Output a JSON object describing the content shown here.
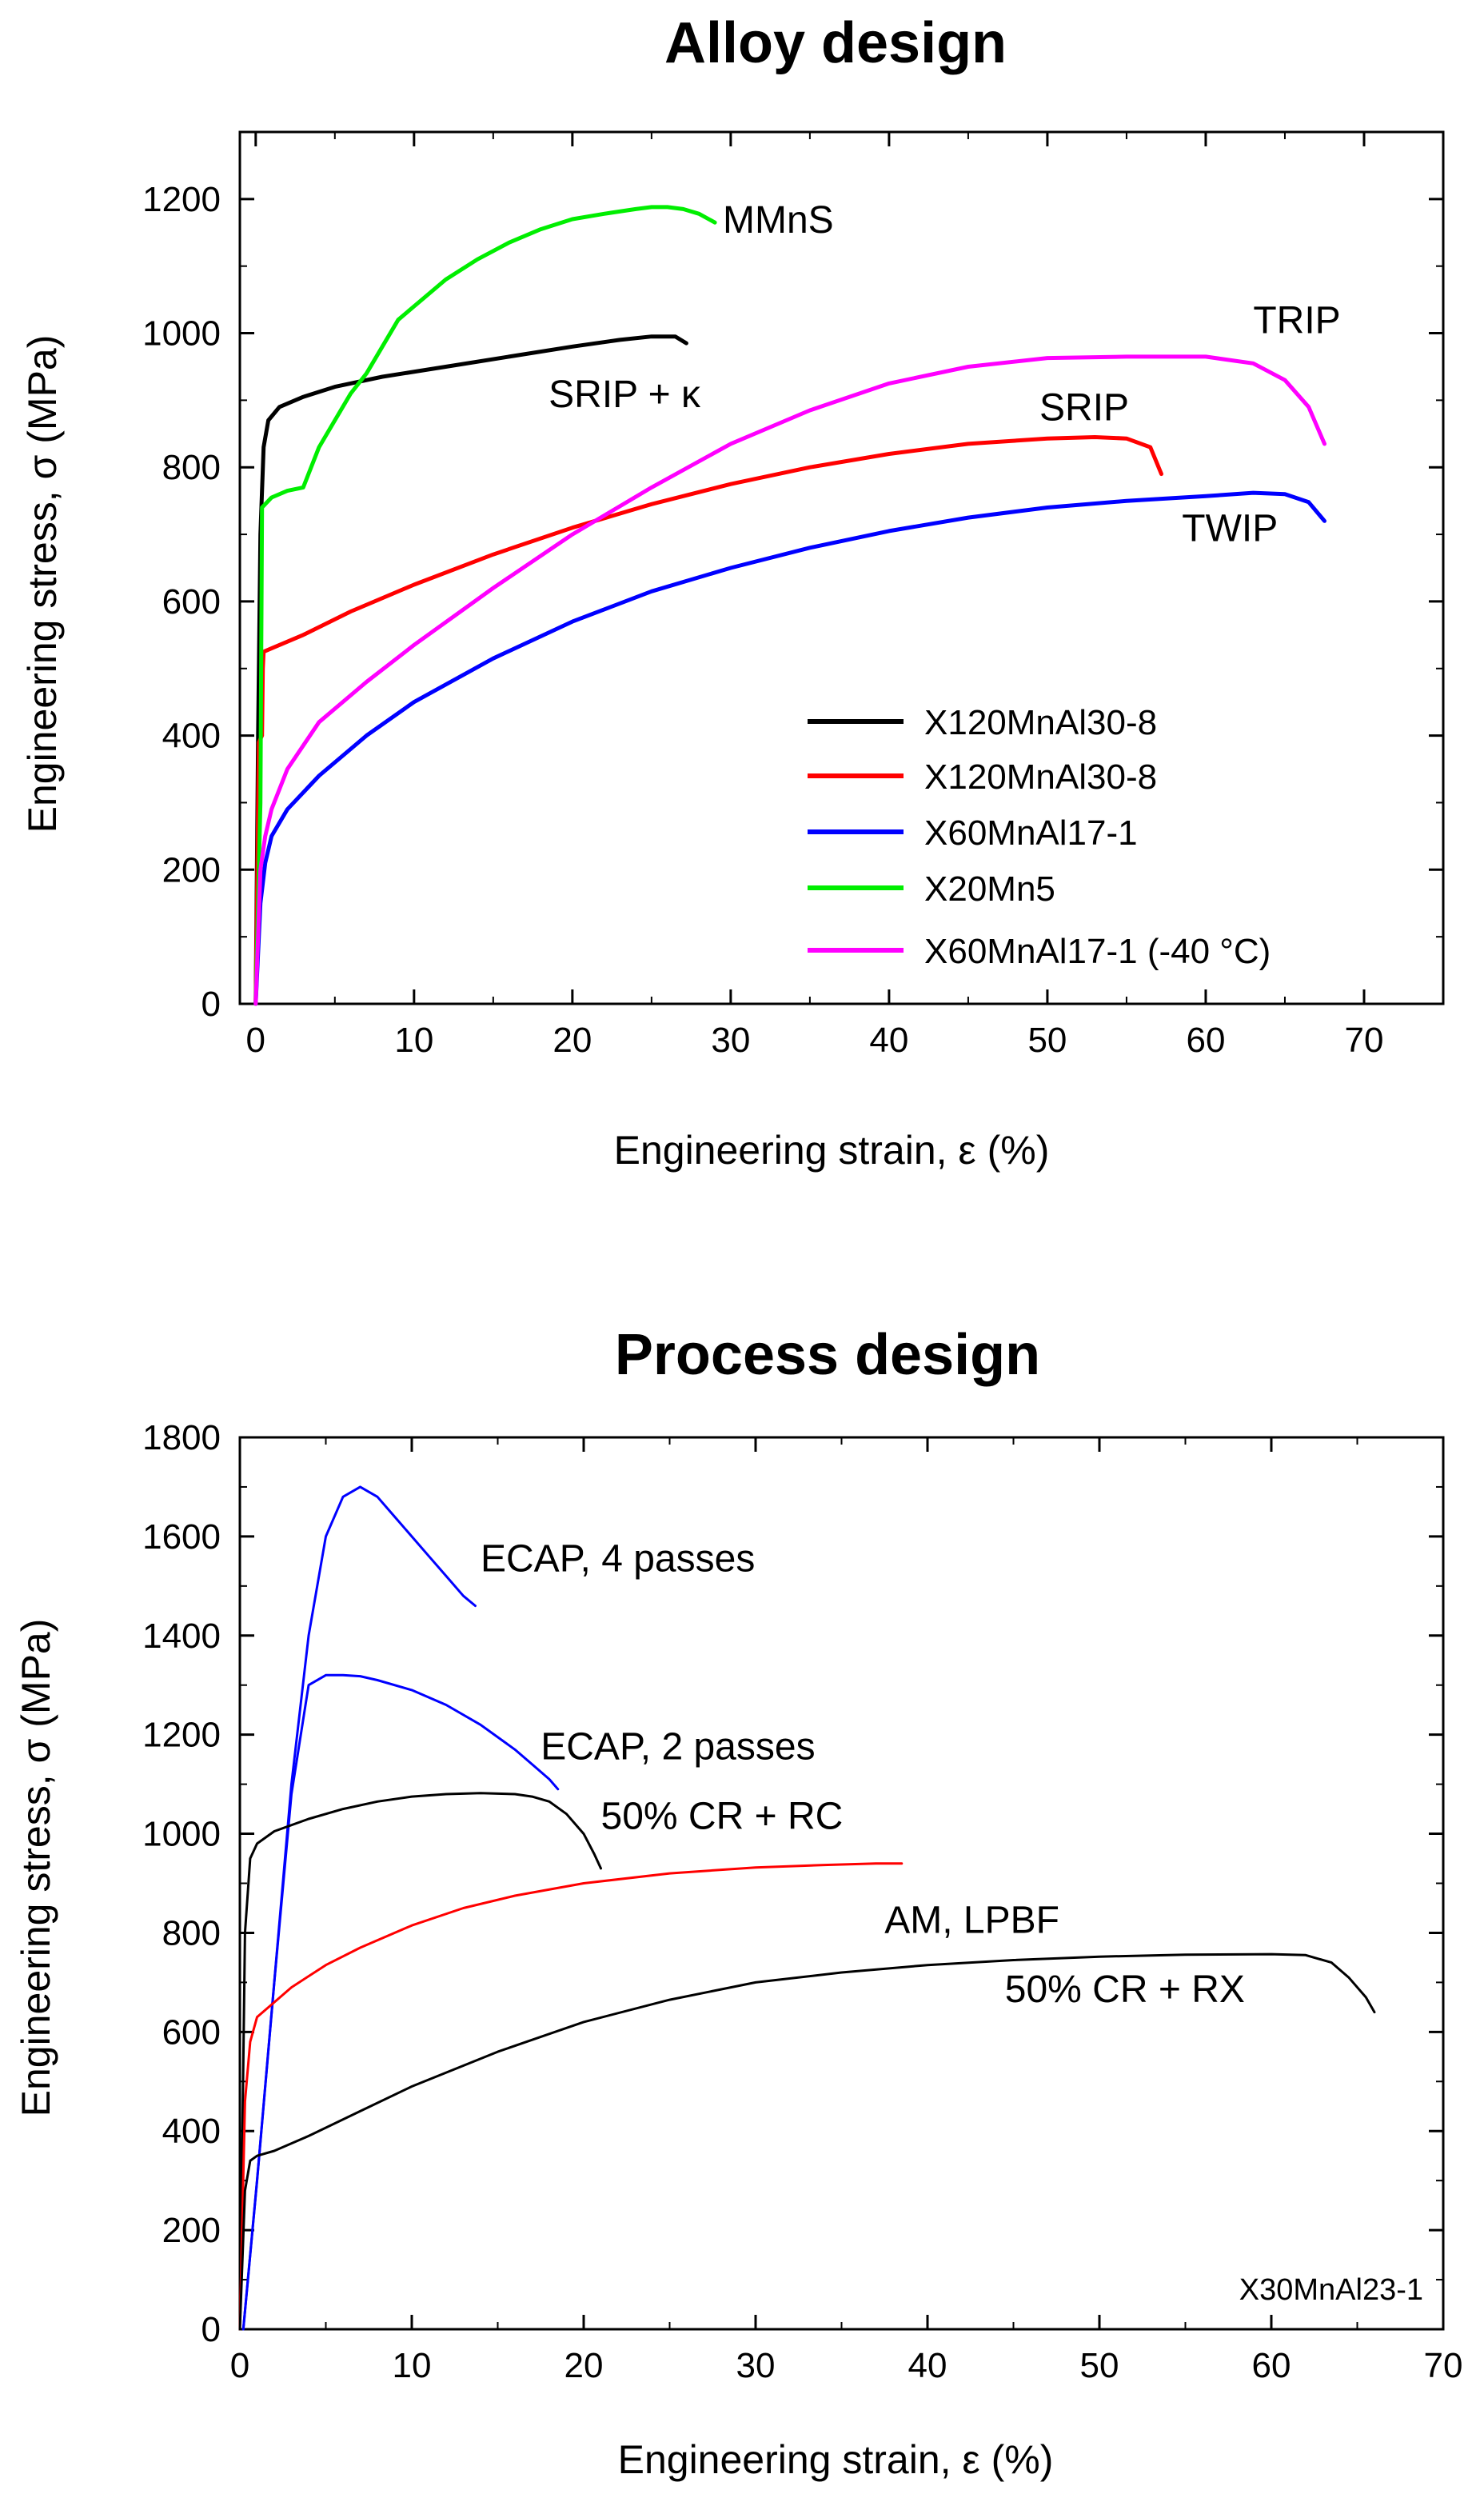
{
  "chart_data": [
    {
      "type": "line",
      "title": "Alloy design",
      "xlabel": "Engineering strain, ε (%)",
      "ylabel": "Engineering stress, σ (MPa)",
      "xlim": [
        -1,
        75
      ],
      "ylim": [
        0,
        1300
      ],
      "xticks": [
        0,
        10,
        20,
        30,
        40,
        50,
        60,
        70
      ],
      "yticks": [
        0,
        200,
        400,
        600,
        800,
        1000,
        1200
      ],
      "grid": false,
      "legend_position": "lower-right",
      "series": [
        {
          "name": "X120MnAl30-8",
          "color": "#000000",
          "x": [
            0,
            0.15,
            0.3,
            0.5,
            0.8,
            1.5,
            3,
            5,
            8,
            12,
            16,
            20,
            23,
            25,
            26.5,
            27.2
          ],
          "y": [
            0,
            400,
            700,
            830,
            870,
            890,
            905,
            920,
            935,
            950,
            965,
            980,
            990,
            995,
            995,
            985
          ]
        },
        {
          "name": "X120MnAl30-8",
          "color": "#ff0000",
          "x": [
            0,
            0.2,
            0.4,
            0.45,
            0.5,
            1,
            3,
            6,
            10,
            15,
            20,
            25,
            30,
            35,
            40,
            45,
            50,
            53,
            55,
            56.5,
            57.2
          ],
          "y": [
            0,
            390,
            400,
            500,
            525,
            530,
            550,
            585,
            625,
            670,
            710,
            745,
            775,
            800,
            820,
            835,
            843,
            845,
            843,
            830,
            790
          ]
        },
        {
          "name": "X60MnAl17-1",
          "color": "#0000ff",
          "x": [
            0,
            0.3,
            0.6,
            1,
            2,
            4,
            7,
            10,
            15,
            20,
            25,
            30,
            35,
            40,
            45,
            50,
            55,
            60,
            63,
            65,
            66.5,
            67.5
          ],
          "y": [
            0,
            150,
            210,
            250,
            290,
            340,
            400,
            450,
            515,
            570,
            615,
            650,
            680,
            705,
            725,
            740,
            750,
            757,
            762,
            760,
            748,
            720
          ]
        },
        {
          "name": "X20Mn5",
          "color": "#00ee00",
          "x": [
            0,
            0.3,
            0.4,
            0.6,
            1,
            2,
            3,
            4,
            5,
            6,
            7,
            8,
            9,
            10,
            12,
            14,
            16,
            18,
            20,
            22,
            24,
            25,
            26,
            27,
            28,
            29
          ],
          "y": [
            0,
            300,
            740,
            745,
            755,
            765,
            770,
            830,
            870,
            910,
            940,
            980,
            1020,
            1040,
            1080,
            1110,
            1135,
            1155,
            1170,
            1178,
            1185,
            1188,
            1188,
            1185,
            1178,
            1165
          ]
        },
        {
          "name": "X60MnAl17-1 (-40 °C)",
          "color": "#ff00ff",
          "x": [
            0,
            0.3,
            0.6,
            1,
            2,
            4,
            7,
            10,
            15,
            20,
            25,
            30,
            35,
            40,
            45,
            50,
            55,
            60,
            63,
            65,
            66.5,
            67.5
          ],
          "y": [
            0,
            200,
            250,
            290,
            350,
            420,
            480,
            535,
            620,
            700,
            770,
            835,
            885,
            925,
            950,
            963,
            965,
            965,
            955,
            930,
            890,
            835
          ]
        }
      ],
      "annotations": [
        {
          "text": "MMnS",
          "x": 29.5,
          "y": 1150
        },
        {
          "text": "SRIP + κ",
          "x": 18.5,
          "y": 890
        },
        {
          "text": "TRIP",
          "x": 63,
          "y": 1000
        },
        {
          "text": "SRIP",
          "x": 49.5,
          "y": 870
        },
        {
          "text": "TWIP",
          "x": 58.5,
          "y": 690
        }
      ]
    },
    {
      "type": "line",
      "title": "Process design",
      "xlabel": "Engineering strain, ε (%)",
      "ylabel": "Engineering stress, σ (MPa)",
      "xlim": [
        0,
        70
      ],
      "ylim": [
        0,
        1800
      ],
      "xticks": [
        0,
        10,
        20,
        30,
        40,
        50,
        60,
        70
      ],
      "yticks": [
        0,
        200,
        400,
        600,
        800,
        1000,
        1200,
        1400,
        1600,
        1800
      ],
      "grid": false,
      "corner_label": "X30MnAl23-1",
      "series": [
        {
          "color": "#0000ff",
          "x": [
            0.2,
            1,
            2,
            3,
            4,
            5,
            6,
            7,
            8,
            9,
            10,
            11,
            12,
            13,
            13.7
          ],
          "y": [
            0,
            300,
            700,
            1100,
            1400,
            1600,
            1680,
            1700,
            1680,
            1640,
            1600,
            1560,
            1520,
            1480,
            1460
          ]
        },
        {
          "color": "#0000ff",
          "x": [
            0.2,
            1,
            2,
            3,
            4,
            5,
            6,
            7,
            8,
            10,
            12,
            14,
            16,
            17,
            18,
            18.5
          ],
          "y": [
            0,
            300,
            700,
            1080,
            1300,
            1320,
            1320,
            1318,
            1310,
            1290,
            1260,
            1220,
            1170,
            1140,
            1110,
            1090
          ]
        },
        {
          "color": "#000000",
          "x": [
            0,
            0.3,
            0.6,
            1,
            2,
            4,
            6,
            8,
            10,
            12,
            14,
            16,
            17,
            18,
            19,
            20,
            20.6,
            21
          ],
          "y": [
            0,
            800,
            950,
            980,
            1005,
            1030,
            1050,
            1065,
            1075,
            1080,
            1082,
            1080,
            1075,
            1065,
            1040,
            1000,
            960,
            930
          ]
        },
        {
          "color": "#ff0000",
          "x": [
            0,
            0.3,
            0.6,
            1,
            2,
            3,
            5,
            7,
            10,
            13,
            16,
            20,
            25,
            30,
            34,
            37,
            38.5
          ],
          "y": [
            0,
            460,
            580,
            630,
            660,
            690,
            735,
            770,
            815,
            850,
            875,
            900,
            920,
            932,
            937,
            940,
            940
          ]
        },
        {
          "color": "#000000",
          "x": [
            0,
            0.3,
            0.6,
            1,
            2,
            4,
            7,
            10,
            15,
            20,
            25,
            30,
            35,
            40,
            45,
            50,
            55,
            60,
            62,
            63.5,
            64.5,
            65.5,
            66
          ],
          "y": [
            0,
            280,
            340,
            350,
            360,
            390,
            440,
            490,
            560,
            620,
            665,
            700,
            720,
            735,
            745,
            752,
            756,
            757,
            755,
            740,
            710,
            670,
            640
          ]
        }
      ],
      "annotations": [
        {
          "text": "ECAP, 4 passes",
          "x": 14,
          "y": 1530
        },
        {
          "text": "ECAP, 2 passes",
          "x": 17.5,
          "y": 1150
        },
        {
          "text": "50% CR + RC",
          "x": 21,
          "y": 1010
        },
        {
          "text": "AM, LPBF",
          "x": 37.5,
          "y": 800
        },
        {
          "text": "50% CR + RX",
          "x": 44.5,
          "y": 660
        }
      ]
    }
  ]
}
